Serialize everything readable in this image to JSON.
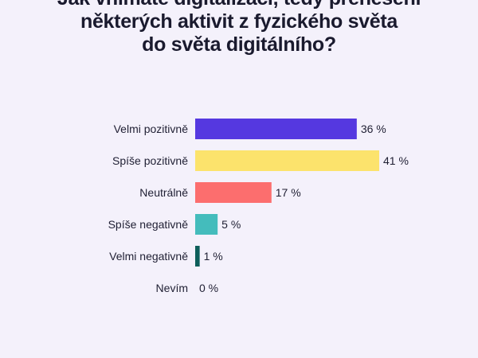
{
  "title_lines": [
    "Jak vnímáte digitalizaci, tedy přenesení",
    "některých aktivit z fyzického světa",
    "do světa digitálního?"
  ],
  "colors": {
    "background": "#f4f1fb",
    "text": "#1f1f33"
  },
  "chart_data": {
    "type": "bar",
    "orientation": "horizontal",
    "title": "Jak vnímáte digitalizaci, tedy přenesení některých aktivit z fyzického světa do světa digitálního?",
    "categories": [
      "Velmi pozitivně",
      "Spíše pozitivně",
      "Neutrálně",
      "Spíše negativně",
      "Velmi negativně",
      "Nevím"
    ],
    "values": [
      36,
      41,
      17,
      5,
      1,
      0
    ],
    "value_labels": [
      "36 %",
      "41 %",
      "17 %",
      "5 %",
      "1 %",
      "0 %"
    ],
    "bar_colors": [
      "#5538e0",
      "#fce36c",
      "#fc6e6e",
      "#44bcbc",
      "#0d5e5a",
      "#cccccc"
    ],
    "xlabel": "",
    "ylabel": "",
    "xlim": [
      0,
      41
    ],
    "grid": false,
    "legend": "none"
  }
}
